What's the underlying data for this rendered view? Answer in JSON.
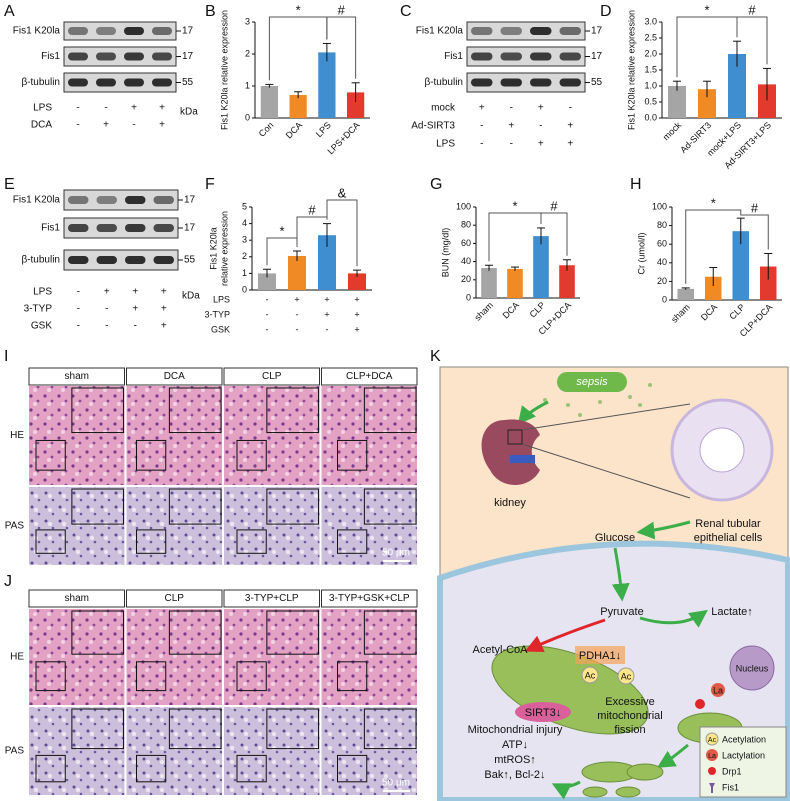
{
  "panel_letters": [
    "A",
    "B",
    "C",
    "D",
    "E",
    "F",
    "G",
    "H",
    "I",
    "J",
    "K"
  ],
  "blots": [
    {
      "rows": [
        "Fis1 K20la",
        "Fis1",
        "β-tubulin"
      ],
      "sizes": [
        "17",
        "17",
        "55"
      ],
      "conditions": [
        {
          "label": "LPS",
          "marks": [
            "-",
            "-",
            "+",
            "+"
          ]
        },
        {
          "label": "DCA",
          "marks": [
            "-",
            "+",
            "-",
            "+"
          ]
        }
      ],
      "unit": "kDa"
    },
    {
      "rows": [
        "Fis1 K20la",
        "Fis1",
        "β-tubulin"
      ],
      "sizes": [
        "17",
        "17",
        "55"
      ],
      "conditions": [
        {
          "label": "mock",
          "marks": [
            "+",
            "-",
            "+",
            "-"
          ]
        },
        {
          "label": "Ad-SIRT3",
          "marks": [
            "-",
            "+",
            "-",
            "+"
          ]
        },
        {
          "label": "LPS",
          "marks": [
            "-",
            "-",
            "+",
            "+"
          ]
        }
      ]
    },
    {
      "rows": [
        "Fis1 K20la",
        "Fis1",
        "β-tubulin"
      ],
      "sizes": [
        "17",
        "17",
        "55"
      ],
      "conditions": [
        {
          "label": "LPS",
          "marks": [
            "-",
            "+",
            "+",
            "+"
          ]
        },
        {
          "label": "3-TYP",
          "marks": [
            "-",
            "-",
            "+",
            "+"
          ]
        },
        {
          "label": "GSK",
          "marks": [
            "-",
            "-",
            "-",
            "+"
          ]
        }
      ],
      "unit": "kDa"
    }
  ],
  "chart_data": [
    {
      "type": "bar",
      "ylabel": "Fis1 K20la relative expression",
      "categories": [
        "Con",
        "DCA",
        "LPS",
        "LPS+DCA"
      ],
      "values": [
        1.0,
        0.72,
        2.05,
        0.8
      ],
      "errors": [
        0.05,
        0.1,
        0.28,
        0.3
      ],
      "colors": [
        "#a5a5a5",
        "#f08a24",
        "#3e8ed0",
        "#e23b2e"
      ],
      "ylim": [
        0,
        3
      ],
      "yticks": [
        0,
        1,
        2,
        3
      ],
      "annotations": [
        "*",
        "#"
      ]
    },
    {
      "type": "bar",
      "ylabel": "Fis1 K20la relative expression",
      "categories": [
        "mock",
        "Ad-SIRT3",
        "mock+LPS",
        "Ad-SIRT3+LPS"
      ],
      "values": [
        1.0,
        0.9,
        2.0,
        1.05
      ],
      "errors": [
        0.15,
        0.25,
        0.4,
        0.5
      ],
      "colors": [
        "#a5a5a5",
        "#f08a24",
        "#3e8ed0",
        "#e23b2e"
      ],
      "ylim": [
        0,
        3
      ],
      "yticks": [
        {
          "value": 0,
          "label": "0.0"
        },
        0.5,
        {
          "value": 1,
          "label": "1.0"
        },
        1.5,
        {
          "value": 2,
          "label": "2.0"
        },
        2.5,
        {
          "value": 3,
          "label": "3.0"
        }
      ],
      "annotations": [
        "*",
        "#"
      ]
    },
    {
      "type": "bar",
      "ylabel": [
        "Fis1 K20la",
        "relative expression"
      ],
      "values": [
        1.0,
        2.05,
        3.3,
        1.0
      ],
      "errors": [
        0.25,
        0.3,
        0.7,
        0.2
      ],
      "colors": [
        "#a5a5a5",
        "#f08a24",
        "#3e8ed0",
        "#e23b2e"
      ],
      "ylim": [
        0,
        5
      ],
      "yticks": [
        0,
        1,
        2,
        3,
        4,
        5
      ],
      "conditions": [
        {
          "label": "LPS",
          "marks": [
            "-",
            "+",
            "+",
            "+"
          ]
        },
        {
          "label": "3-TYP",
          "marks": [
            "-",
            "-",
            "+",
            "+"
          ]
        },
        {
          "label": "GSK",
          "marks": [
            "-",
            "-",
            "-",
            "+"
          ]
        }
      ],
      "annotations": [
        "*",
        "#",
        "&"
      ]
    },
    {
      "type": "bar",
      "ylabel": "BUN (mg/dl)",
      "categories": [
        "sham",
        "DCA",
        "CLP",
        "CLP+DCA"
      ],
      "values": [
        33,
        32,
        68,
        36
      ],
      "errors": [
        3,
        2,
        9,
        6
      ],
      "colors": [
        "#a5a5a5",
        "#f08a24",
        "#3e8ed0",
        "#e23b2e"
      ],
      "ylim": [
        0,
        100
      ],
      "yticks": [
        0,
        20,
        40,
        60,
        80,
        100
      ],
      "annotations": [
        "*",
        "#"
      ]
    },
    {
      "type": "bar",
      "ylabel": "Cr (umol/l)",
      "categories": [
        "sham",
        "DCA",
        "CLP",
        "CLP+DCA"
      ],
      "values": [
        12,
        25,
        74,
        36
      ],
      "errors": [
        1,
        10,
        14,
        14
      ],
      "colors": [
        "#a5a5a5",
        "#f08a24",
        "#3e8ed0",
        "#e23b2e"
      ],
      "ylim": [
        0,
        100
      ],
      "yticks": [
        0,
        20,
        40,
        60,
        80,
        100
      ],
      "annotations": [
        "*",
        "#"
      ]
    }
  ],
  "histology": [
    {
      "columns": [
        "sham",
        "DCA",
        "CLP",
        "CLP+DCA"
      ],
      "rows": [
        "HE",
        "PAS"
      ],
      "scale_bar": "50 μm"
    },
    {
      "columns": [
        "sham",
        "CLP",
        "3-TYP+CLP",
        "3-TYP+GSK+CLP"
      ],
      "rows": [
        "HE",
        "PAS"
      ],
      "scale_bar": "50 μm"
    }
  ],
  "diagram": {
    "sepsis": "sepsis",
    "kidney": "kidney",
    "tubule": [
      "Renal tubular",
      "epithelial cells"
    ],
    "glucose": "Glucose",
    "pyruvate": "Pyruvate",
    "acetyl_coa": "Acetyl-CoA",
    "pdha1": "PDHA1↓",
    "ac": "Ac",
    "sirt3": "SIRT3↓",
    "lactate": "Lactate↑",
    "nucleus": "Nucleus",
    "la": "La",
    "fission": [
      "Excessive",
      "mitochondrial",
      "fission"
    ],
    "injury": [
      "Mitochondrial injury",
      "ATP↓",
      "mtROS↑",
      "Bak↑, Bcl-2↓"
    ],
    "legend": [
      "Acetylation",
      "Lactylation",
      "Drp1",
      "Fis1"
    ]
  }
}
